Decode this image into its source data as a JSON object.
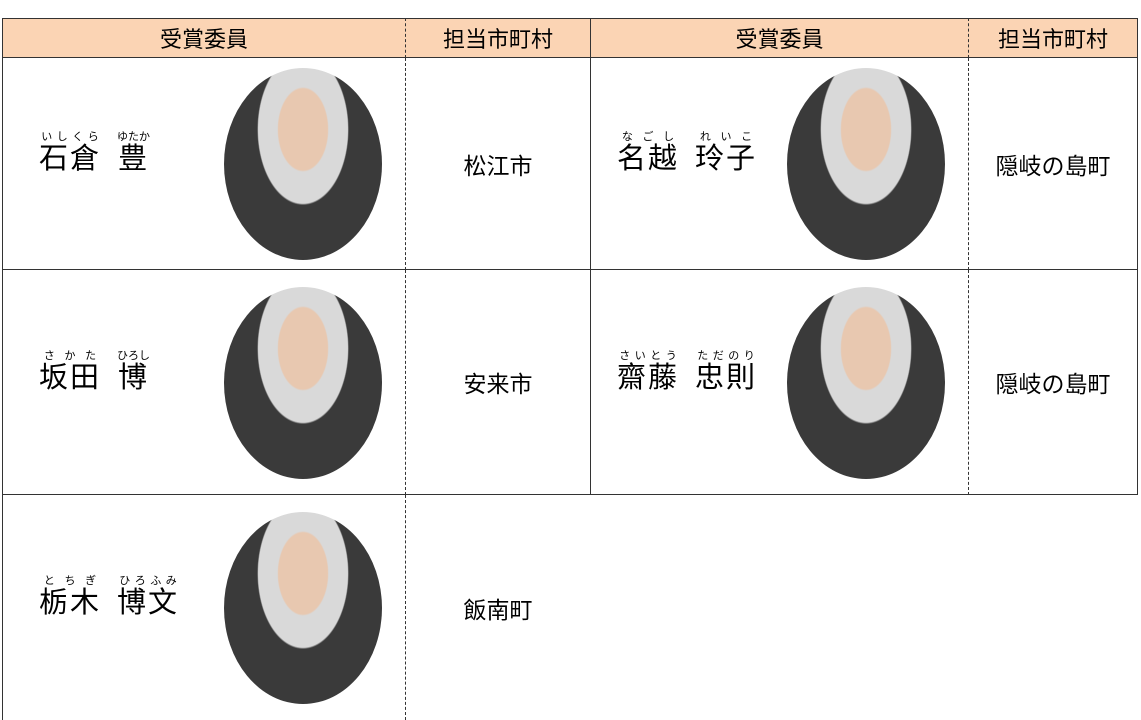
{
  "table": {
    "header": [
      "受賞委員",
      "担当市町村",
      "受賞委員",
      "担当市町村"
    ],
    "rows": [
      [
        {
          "name": [
            {
              "text": "石倉",
              "ruby": "いしくら"
            },
            {
              "text": "豊",
              "ruby": "ゆたか"
            }
          ],
          "city": "松江市"
        },
        {
          "name": [
            {
              "text": "名越",
              "ruby": "なごし"
            },
            {
              "text": "玲子",
              "ruby": "れいこ"
            }
          ],
          "city": "隠岐の島町"
        }
      ],
      [
        {
          "name": [
            {
              "text": "坂田",
              "ruby": "さかた"
            },
            {
              "text": "博",
              "ruby": "ひろし"
            }
          ],
          "city": "安来市"
        },
        {
          "name": [
            {
              "text": "齋藤",
              "ruby": "さいとう"
            },
            {
              "text": "忠則",
              "ruby": "ただのり"
            }
          ],
          "city": "隠岐の島町"
        }
      ],
      [
        {
          "name": [
            {
              "text": "栃木",
              "ruby": "とちぎ"
            },
            {
              "text": "博文",
              "ruby": "ひろふみ"
            }
          ],
          "city": "飯南町"
        }
      ]
    ]
  }
}
